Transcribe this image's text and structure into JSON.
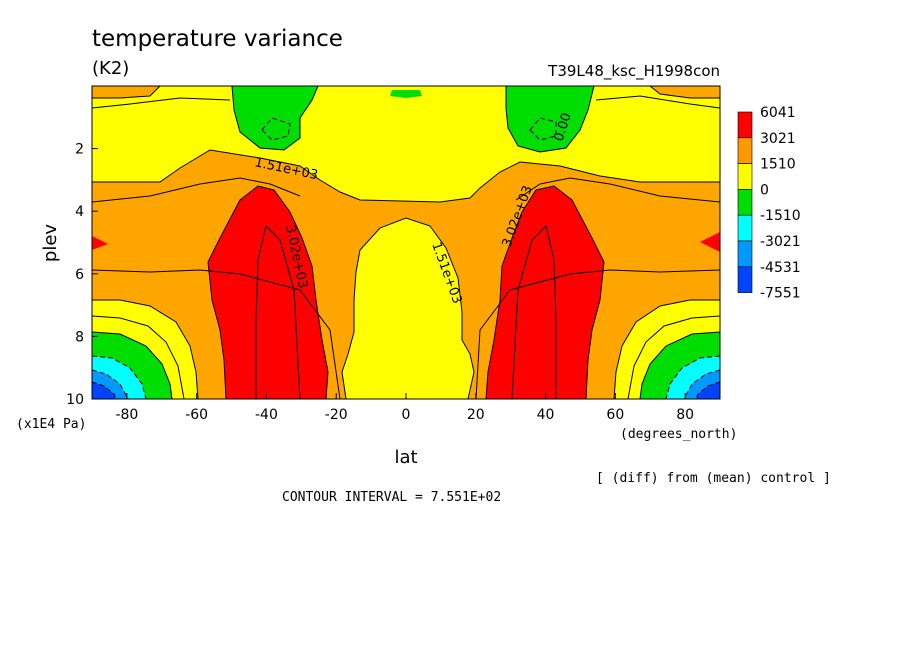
{
  "chart_data": {
    "type": "contour",
    "title": "temperature variance",
    "units": "(K2)",
    "run_label": "T39L48_ksc_H1998con",
    "xlabel": "lat",
    "x_units": "(degrees_north)",
    "ylabel": "plev",
    "y_units": "(x1E4 Pa)",
    "note": "[ (diff) from (mean) control ]",
    "contour_interval_text": "CONTOUR INTERVAL = 7.551E+02",
    "xlim": [
      -90,
      90
    ],
    "ylim": [
      10,
      0
    ],
    "x_ticks": [
      -80,
      -60,
      -40,
      -20,
      0,
      20,
      40,
      60,
      80
    ],
    "y_ticks": [
      2,
      4,
      6,
      8,
      10
    ],
    "colorbar": {
      "labels": [
        "6041",
        "3021",
        "1510",
        "0",
        "-1510",
        "-3021",
        "-4531",
        "-7551"
      ],
      "colors": [
        "#ff0000",
        "#ff9900",
        "#ffff00",
        "#00dd00",
        "#00ffff",
        "#0099ff",
        "#0044ff"
      ]
    },
    "fill_colors": {
      "red": "#ff0000",
      "orange": "#ffa500",
      "yellow": "#ffff00",
      "green": "#00dd00",
      "cyan": "#00ffff",
      "lightblue": "#0099ff",
      "blue": "#0044ff"
    },
    "contour_labels": [
      "1.51e+03",
      "3.02e+03",
      "1.51e+03",
      "3.02e+03",
      "0.00"
    ]
  }
}
